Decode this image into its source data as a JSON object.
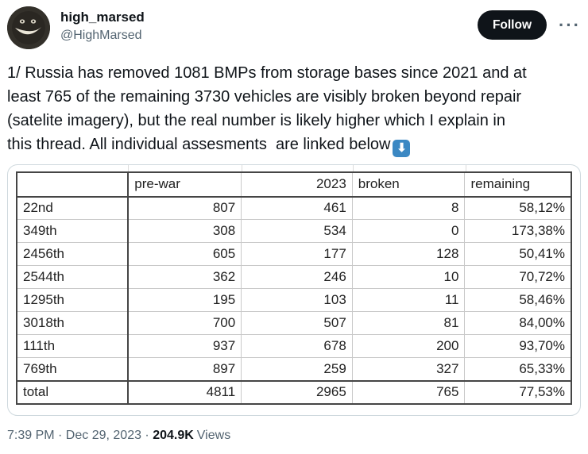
{
  "header": {
    "display_name": "high_marsed",
    "handle": "@HighMarsed",
    "follow_label": "Follow",
    "more_label": "···"
  },
  "tweet": {
    "text": "1/ Russia has removed 1081 BMPs from storage bases since 2021 and at\nleast 765 of the remaining 3730 vehicles are visibly broken beyond repair\n(satelite imagery), but the real number is likely higher which I explain in\nthis thread. All individual assesments  are linked below",
    "down_arrow_emoji": "⬇"
  },
  "table": {
    "headers": [
      "",
      "pre-war",
      "2023",
      "broken",
      "remaining"
    ],
    "rows": [
      [
        "22nd",
        "807",
        "461",
        "8",
        "58,12%"
      ],
      [
        "349th",
        "308",
        "534",
        "0",
        "173,38%"
      ],
      [
        "2456th",
        "605",
        "177",
        "128",
        "50,41%"
      ],
      [
        "2544th",
        "362",
        "246",
        "10",
        "70,72%"
      ],
      [
        "1295th",
        "195",
        "103",
        "11",
        "58,46%"
      ],
      [
        "3018th",
        "700",
        "507",
        "81",
        "84,00%"
      ],
      [
        "111th",
        "937",
        "678",
        "200",
        "93,70%"
      ],
      [
        "769th",
        "897",
        "259",
        "327",
        "65,33%"
      ]
    ],
    "total_row": [
      "total",
      "4811",
      "2965",
      "765",
      "77,53%"
    ]
  },
  "footer": {
    "datetime": "7:39 PM · Dec 29, 2023",
    "separator": " · ",
    "views_count": "204.9K",
    "views_label": "Views"
  },
  "colors": {
    "text_primary": "#0f1419",
    "text_secondary": "#536471",
    "follow_button_bg": "#0f1419",
    "media_border": "#cfd9de",
    "table_border_dark": "#454545",
    "table_grid": "#c9c9c9",
    "emoji_blue": "#3b88c3"
  }
}
